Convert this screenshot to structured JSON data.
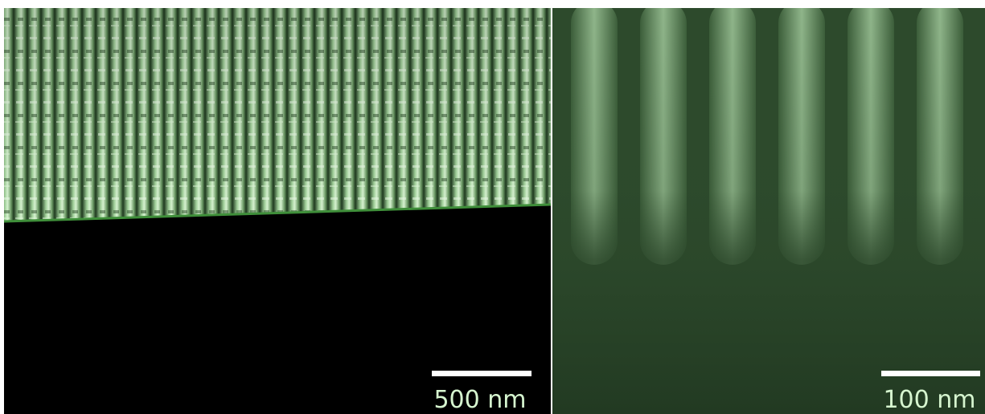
{
  "panels": [
    {
      "scale_bar_label": "500 nm"
    },
    {
      "scale_bar_label": "100 nm"
    }
  ]
}
